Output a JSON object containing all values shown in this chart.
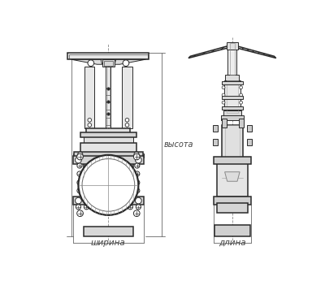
{
  "bg_color": "#ffffff",
  "line_color": "#2a2a2a",
  "dim_color": "#444444",
  "label_shirina": "ширина",
  "label_dlina": "длина",
  "label_vysota": "высота",
  "fig_width": 4.0,
  "fig_height": 3.46
}
